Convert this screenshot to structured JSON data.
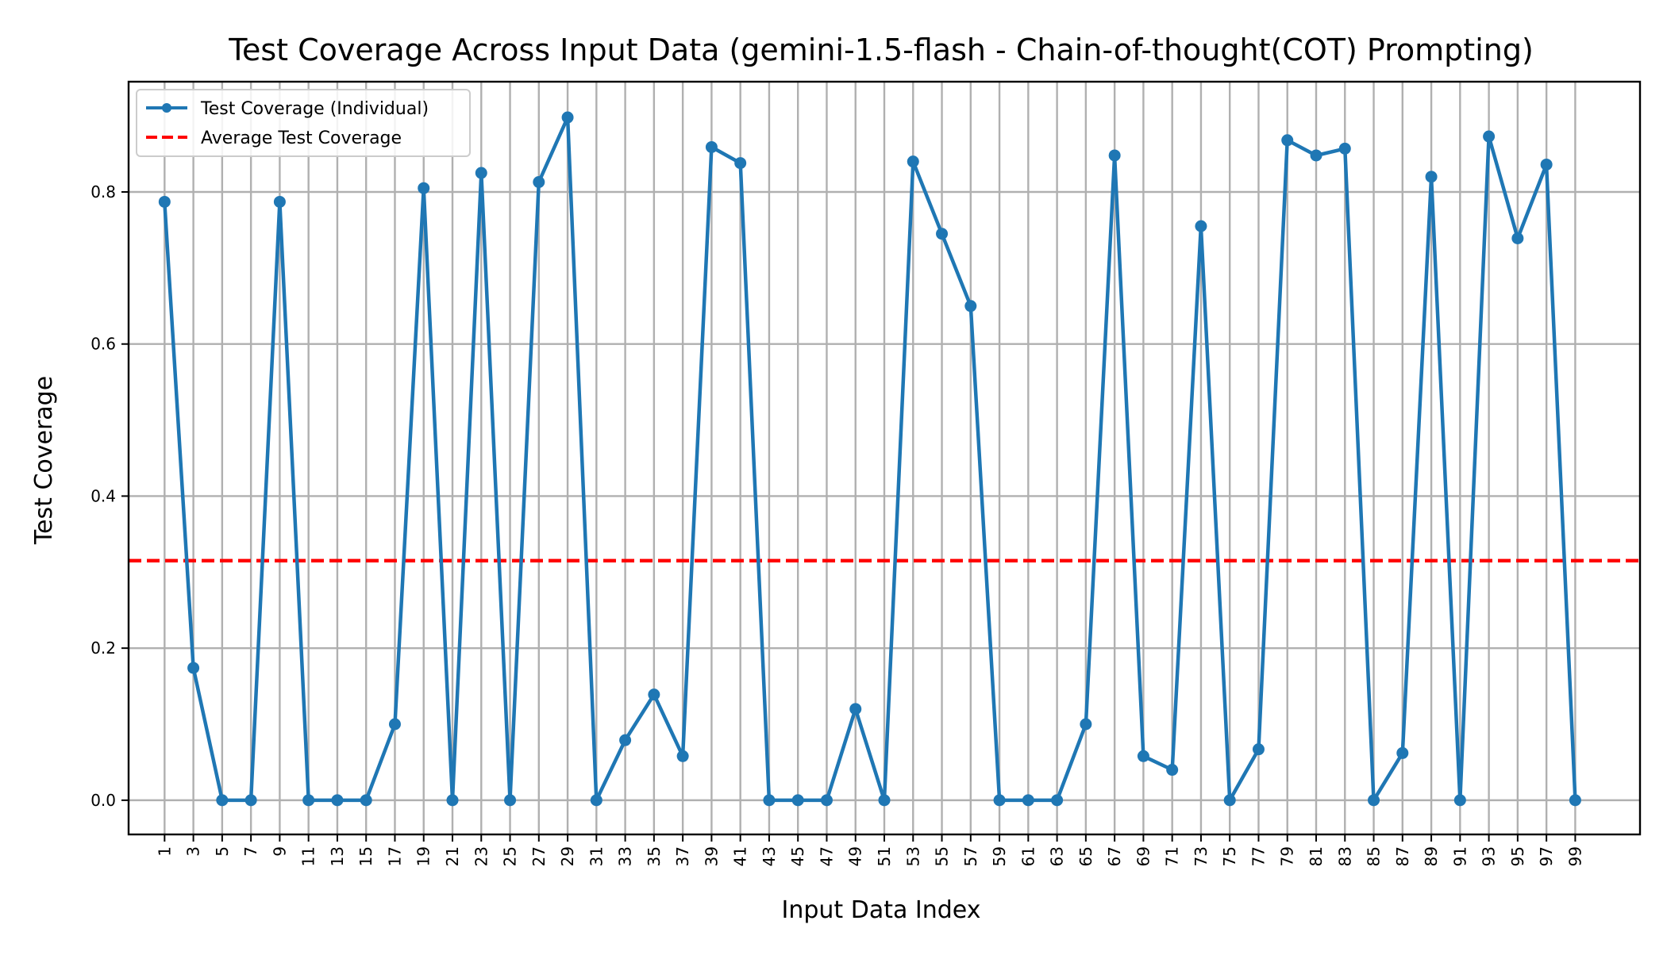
{
  "chart_data": {
    "type": "line",
    "title": "Test Coverage Across Input Data (gemini-1.5-flash - Chain-of-thought(COT) Prompting)",
    "xlabel": "Input Data Index",
    "ylabel": "Test Coverage",
    "xlim": [
      -1.5,
      103.5
    ],
    "ylim": [
      -0.045,
      0.945
    ],
    "grid": true,
    "legend_position": "upper-left",
    "y_ticks": [
      "0.0",
      "0.2",
      "0.4",
      "0.6",
      "0.8"
    ],
    "x": [
      1,
      3,
      5,
      7,
      9,
      11,
      13,
      15,
      17,
      19,
      21,
      23,
      25,
      27,
      29,
      31,
      33,
      35,
      37,
      39,
      41,
      43,
      45,
      47,
      49,
      51,
      53,
      55,
      57,
      59,
      61,
      63,
      65,
      67,
      69,
      71,
      73,
      75,
      77,
      79,
      81,
      83,
      85,
      87,
      89,
      91,
      93,
      95,
      97,
      99
    ],
    "x_tick_labels": [
      "1",
      "3",
      "5",
      "7",
      "9",
      "11",
      "13",
      "15",
      "17",
      "19",
      "21",
      "23",
      "25",
      "27",
      "29",
      "31",
      "33",
      "35",
      "37",
      "39",
      "41",
      "43",
      "45",
      "47",
      "49",
      "51",
      "53",
      "55",
      "57",
      "59",
      "61",
      "63",
      "65",
      "67",
      "69",
      "71",
      "73",
      "75",
      "77",
      "79",
      "81",
      "83",
      "85",
      "87",
      "89",
      "91",
      "93",
      "95",
      "97",
      "99"
    ],
    "series": [
      {
        "name": "Test Coverage (Individual)",
        "color": "#1f77b4",
        "style": "solid line with dot markers",
        "values": [
          0.787,
          0.174,
          0.0,
          0.0,
          0.787,
          0.0,
          0.0,
          0.0,
          0.1,
          0.805,
          0.0,
          0.825,
          0.0,
          0.813,
          0.898,
          0.0,
          0.079,
          0.139,
          0.058,
          0.859,
          0.838,
          0.0,
          0.0,
          0.0,
          0.12,
          0.0,
          0.84,
          0.745,
          0.65,
          0.0,
          0.0,
          0.0,
          0.1,
          0.848,
          0.058,
          0.04,
          0.755,
          0.0,
          0.067,
          0.868,
          0.848,
          0.857,
          0.0,
          0.062,
          0.82,
          0.0,
          0.873,
          0.739,
          0.836,
          0.0
        ]
      },
      {
        "name": "Average Test Coverage",
        "color": "#ff0000",
        "style": "dashed horizontal line",
        "value": 0.315
      }
    ]
  }
}
